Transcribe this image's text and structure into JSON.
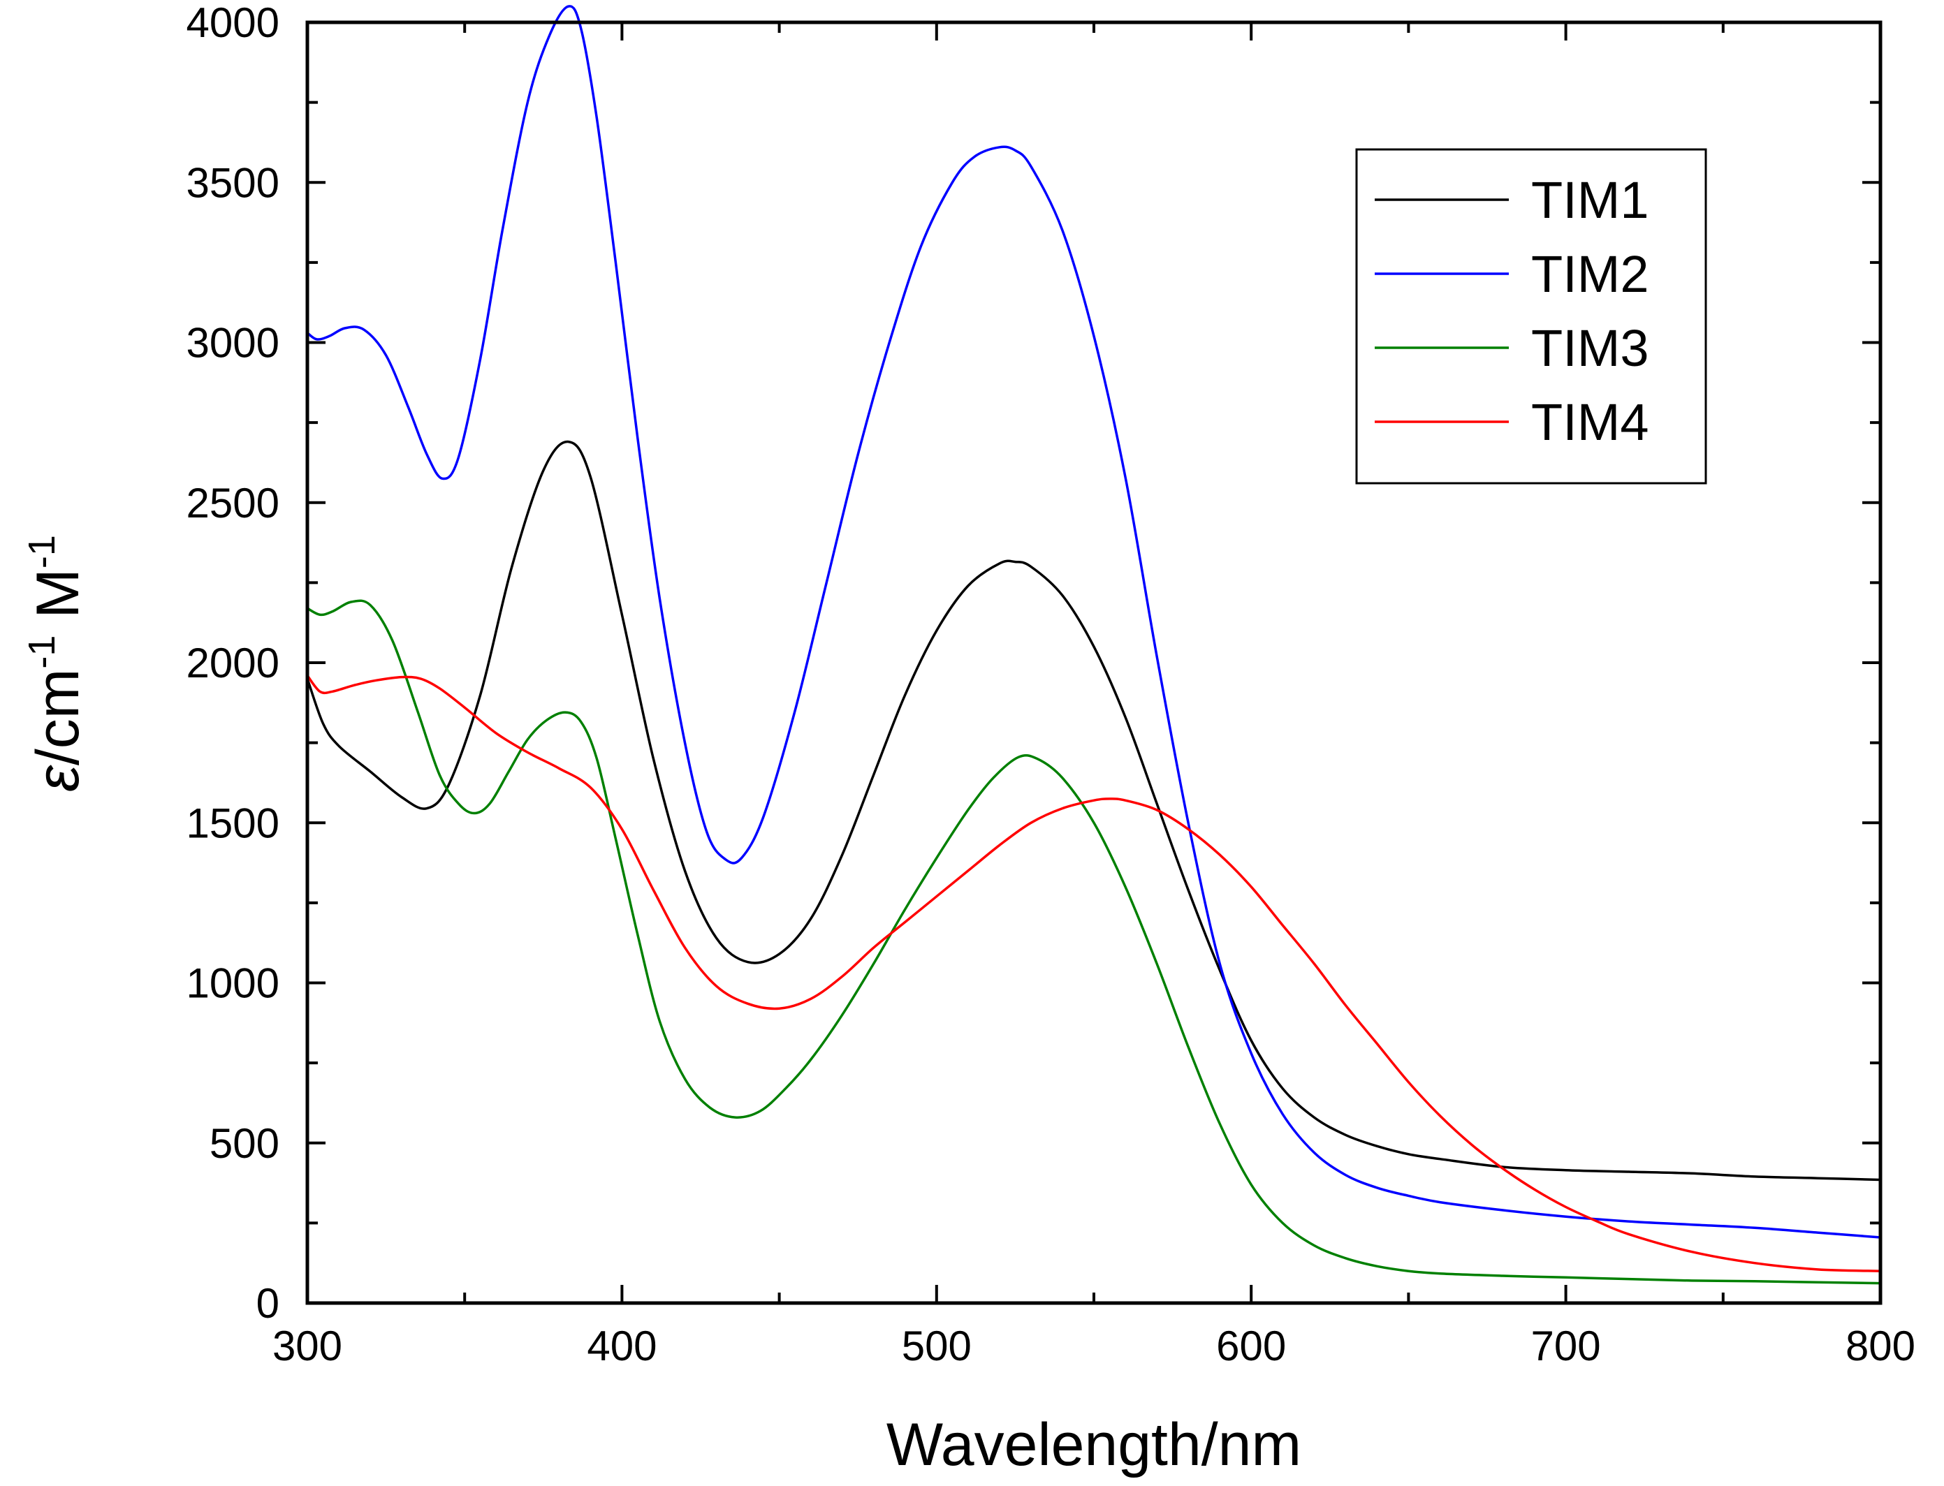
{
  "chart_data": {
    "type": "line",
    "title": "",
    "xlabel": "Wavelength/nm",
    "ylabel": {
      "symbol": "ε",
      "unit_a": "/cm",
      "sup_a": "-1",
      "unit_b": " M",
      "sup_b": "-1"
    },
    "xlim": [
      300,
      800
    ],
    "ylim": [
      0,
      4000
    ],
    "xticks": [
      300,
      400,
      500,
      600,
      700,
      800
    ],
    "xtick_labels": [
      "300",
      "400",
      "500",
      "600",
      "700",
      "800"
    ],
    "yticks": [
      0,
      500,
      1000,
      1500,
      2000,
      2500,
      3000,
      3500,
      4000
    ],
    "ytick_labels": [
      "0",
      "500",
      "1000",
      "1500",
      "2000",
      "2500",
      "3000",
      "3500",
      "4000"
    ],
    "grid": false,
    "legend_position": "top-right",
    "series": [
      {
        "name": "TIM1",
        "color": "#000000",
        "x": [
          300,
          305,
          310,
          320,
          330,
          338,
          345,
          355,
          365,
          375,
          383,
          390,
          400,
          410,
          420,
          430,
          440,
          450,
          460,
          470,
          480,
          490,
          500,
          510,
          520,
          525,
          530,
          540,
          550,
          560,
          570,
          580,
          590,
          600,
          610,
          620,
          630,
          640,
          650,
          660,
          680,
          700,
          720,
          740,
          760,
          780,
          800
        ],
        "y": [
          1950,
          1810,
          1740,
          1660,
          1580,
          1545,
          1620,
          1900,
          2300,
          2600,
          2690,
          2580,
          2150,
          1700,
          1350,
          1140,
          1065,
          1090,
          1200,
          1400,
          1650,
          1900,
          2100,
          2240,
          2310,
          2315,
          2300,
          2210,
          2050,
          1830,
          1560,
          1290,
          1040,
          820,
          670,
          580,
          525,
          490,
          465,
          450,
          425,
          415,
          410,
          405,
          395,
          390,
          385
        ]
      },
      {
        "name": "TIM2",
        "color": "#0000ff",
        "x": [
          300,
          303,
          307,
          312,
          318,
          325,
          332,
          338,
          343,
          348,
          355,
          362,
          370,
          377,
          383,
          387,
          392,
          398,
          405,
          412,
          420,
          427,
          433,
          438,
          445,
          455,
          465,
          475,
          485,
          495,
          505,
          512,
          520,
          525,
          530,
          540,
          550,
          560,
          570,
          580,
          590,
          600,
          610,
          620,
          630,
          640,
          650,
          660,
          680,
          700,
          720,
          740,
          760,
          780,
          800
        ],
        "y": [
          3030,
          3010,
          3020,
          3045,
          3040,
          2960,
          2800,
          2650,
          2575,
          2640,
          2950,
          3350,
          3750,
          3960,
          4050,
          3980,
          3700,
          3250,
          2700,
          2200,
          1750,
          1470,
          1385,
          1390,
          1520,
          1850,
          2250,
          2650,
          3000,
          3300,
          3500,
          3580,
          3610,
          3600,
          3550,
          3350,
          3020,
          2580,
          2020,
          1500,
          1060,
          780,
          590,
          470,
          400,
          360,
          335,
          315,
          290,
          270,
          255,
          245,
          235,
          220,
          205
        ]
      },
      {
        "name": "TIM3",
        "color": "#008000",
        "x": [
          300,
          304,
          308,
          314,
          320,
          327,
          335,
          342,
          348,
          353,
          358,
          364,
          370,
          376,
          382,
          387,
          392,
          398,
          405,
          412,
          420,
          428,
          436,
          444,
          452,
          460,
          470,
          480,
          490,
          500,
          510,
          518,
          526,
          532,
          540,
          550,
          560,
          570,
          580,
          590,
          600,
          610,
          620,
          630,
          640,
          650,
          660,
          680,
          700,
          720,
          740,
          760,
          780,
          800
        ],
        "y": [
          2170,
          2150,
          2160,
          2190,
          2180,
          2070,
          1850,
          1650,
          1560,
          1530,
          1560,
          1660,
          1760,
          1820,
          1845,
          1815,
          1700,
          1450,
          1150,
          880,
          700,
          610,
          580,
          600,
          670,
          760,
          900,
          1060,
          1230,
          1390,
          1540,
          1640,
          1705,
          1700,
          1640,
          1500,
          1300,
          1060,
          800,
          560,
          370,
          250,
          180,
          140,
          115,
          100,
          92,
          85,
          80,
          75,
          70,
          68,
          65,
          62
        ]
      },
      {
        "name": "TIM4",
        "color": "#ff0000",
        "x": [
          300,
          304,
          308,
          315,
          322,
          330,
          336,
          342,
          350,
          360,
          370,
          380,
          390,
          400,
          410,
          420,
          430,
          440,
          450,
          460,
          470,
          480,
          490,
          500,
          510,
          520,
          530,
          540,
          550,
          555,
          560,
          570,
          580,
          590,
          600,
          610,
          620,
          630,
          640,
          650,
          660,
          670,
          680,
          690,
          700,
          710,
          720,
          740,
          760,
          780,
          800
        ],
        "y": [
          1960,
          1910,
          1910,
          1930,
          1945,
          1955,
          1950,
          1920,
          1860,
          1780,
          1720,
          1670,
          1610,
          1480,
          1290,
          1110,
          990,
          935,
          920,
          950,
          1020,
          1110,
          1190,
          1270,
          1350,
          1430,
          1500,
          1545,
          1570,
          1575,
          1570,
          1540,
          1480,
          1400,
          1300,
          1180,
          1060,
          930,
          810,
          690,
          585,
          495,
          420,
          355,
          300,
          255,
          215,
          160,
          125,
          105,
          100
        ]
      }
    ]
  }
}
